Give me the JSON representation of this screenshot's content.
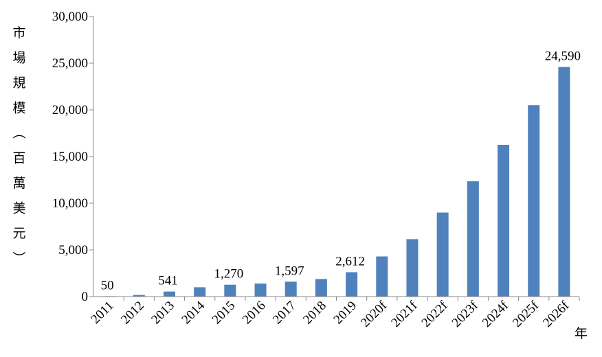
{
  "chart_data": {
    "type": "bar",
    "categories": [
      "2011",
      "2012",
      "2013",
      "2014",
      "2015",
      "2016",
      "2017",
      "2018",
      "2019",
      "2020f",
      "2021f",
      "2022f",
      "2023f",
      "2024f",
      "2025f",
      "2026f"
    ],
    "values": [
      50,
      170,
      541,
      1000,
      1270,
      1400,
      1597,
      1880,
      2612,
      4300,
      6150,
      9000,
      12350,
      16250,
      20500,
      24590
    ],
    "data_labels": {
      "2011": "50",
      "2013": "541",
      "2015": "1,270",
      "2017": "1,597",
      "2019": "2,612",
      "2026f": "24,590"
    },
    "ylabel": "市場規模（百萬美元）",
    "xlabel": "年",
    "ylim": [
      0,
      30000
    ],
    "yticks": [
      "0",
      "5,000",
      "10,000",
      "15,000",
      "20,000",
      "25,000",
      "30,000"
    ],
    "grid": false,
    "bar_color": "#4F81BD"
  }
}
